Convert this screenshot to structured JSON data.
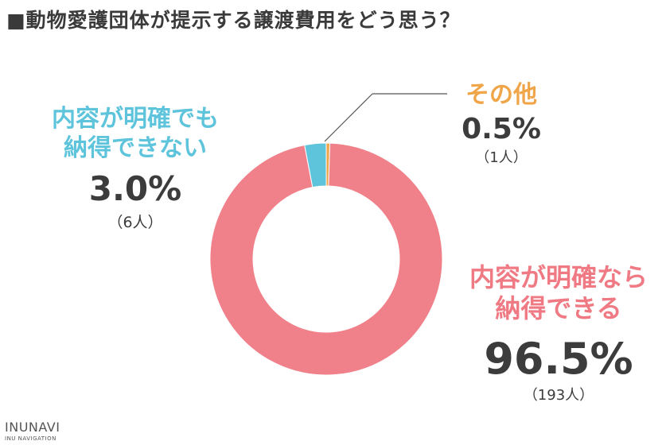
{
  "title": "■動物愛護団体が提示する譲渡費用をどう思う？",
  "chart_data": {
    "type": "pie",
    "donut": true,
    "slices": [
      {
        "name_lines": [
          "内容が明確なら",
          "納得できる"
        ],
        "percent_label": "96.5%",
        "value": 96.5,
        "count_label": "（193人）",
        "count": 193,
        "color": "#f08089"
      },
      {
        "name_lines": [
          "内容が明確でも",
          "納得できない"
        ],
        "percent_label": "3.0%",
        "value": 3.0,
        "count_label": "（6人）",
        "count": 6,
        "color": "#5dc4dc"
      },
      {
        "name_lines": [
          "その他"
        ],
        "percent_label": "0.5%",
        "value": 0.5,
        "count_label": "（1人）",
        "count": 1,
        "color": "#f0a548"
      }
    ]
  },
  "logo": {
    "main": "INUNAVI",
    "sub": "INU NAVIGATION"
  }
}
